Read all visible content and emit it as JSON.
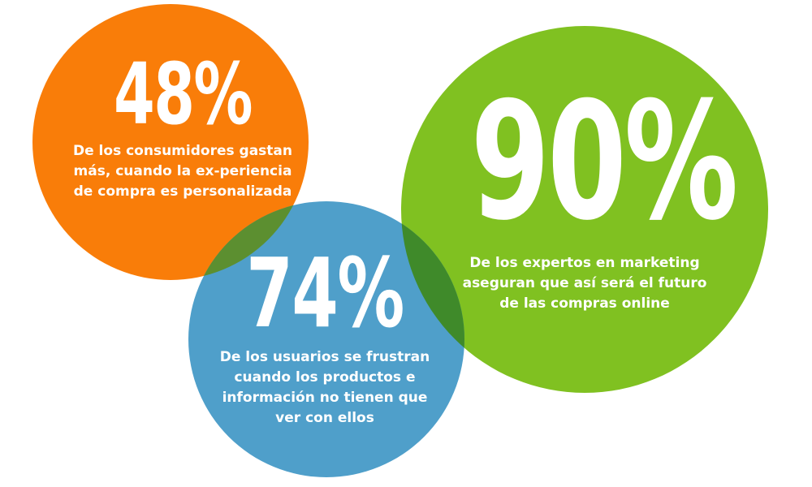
{
  "colors": {
    "orange": "#f97d09",
    "blue": "#4f9fca",
    "green": "#80c121",
    "overlap_orange_blue": "#5c8f30",
    "overlap_green_blue": "#3f8a2a",
    "text": "#ffffff"
  },
  "stats": [
    {
      "percent": "48%",
      "description": "De los consumidores gastan más, cuando la ex-periencia de compra es personalizada"
    },
    {
      "percent": "74%",
      "description": "De los usuarios se frustran cuando los productos e información no tienen que ver con ellos"
    },
    {
      "percent": "90%",
      "description": "De los expertos en marketing aseguran que así será el futuro de las compras online"
    }
  ]
}
